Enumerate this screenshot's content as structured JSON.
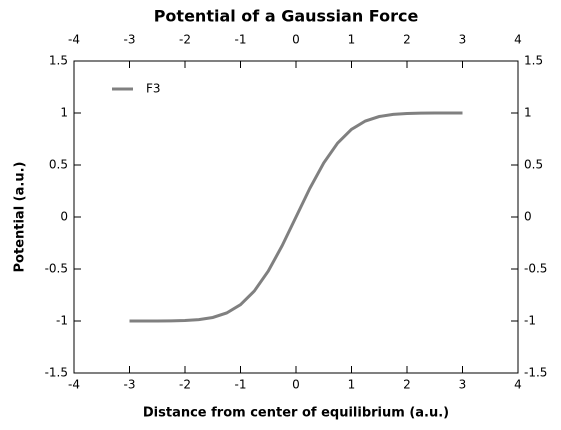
{
  "chart_data": {
    "type": "line",
    "title": "Potential of a Gaussian Force",
    "x_label": "Distance from center of equilibrium (a.u.)",
    "y_label": "Potential (a.u.)",
    "x": [
      -3,
      -2.75,
      -2.5,
      -2.25,
      -2,
      -1.75,
      -1.5,
      -1.25,
      -1,
      -0.75,
      -0.5,
      -0.25,
      0,
      0.25,
      0.5,
      0.75,
      1,
      1.25,
      1.5,
      1.75,
      2,
      2.25,
      2.5,
      2.75,
      3
    ],
    "series": [
      {
        "name": "F3",
        "color": "#808080",
        "values": [
          -1.0,
          -0.9999,
          -0.9996,
          -0.9985,
          -0.9953,
          -0.9867,
          -0.9661,
          -0.9229,
          -0.8427,
          -0.7112,
          -0.5205,
          -0.2763,
          0,
          0.2763,
          0.5205,
          0.7112,
          0.8427,
          0.9229,
          0.9661,
          0.9867,
          0.9953,
          0.9985,
          0.9996,
          0.9999,
          1.0
        ]
      }
    ],
    "xlim": [
      -4,
      4
    ],
    "xticks": [
      -4,
      -3,
      -2,
      -1,
      0,
      1,
      2,
      3,
      4
    ],
    "ylim": [
      -1.5,
      1.5
    ],
    "yticks": [
      -1.5,
      -1,
      -0.5,
      0,
      0.5,
      1,
      1.5
    ],
    "legend": "upper left",
    "grid": false
  }
}
